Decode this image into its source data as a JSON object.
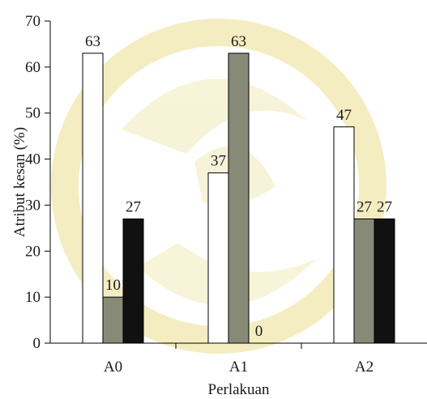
{
  "chart_data": {
    "type": "bar",
    "title": "",
    "xlabel": "Perlakuan",
    "ylabel": "Atribut kesan (%)",
    "categories": [
      "A0",
      "A1",
      "A2"
    ],
    "series": [
      {
        "values": [
          63,
          37,
          47
        ],
        "color": "#ffffff"
      },
      {
        "values": [
          10,
          63,
          27
        ],
        "color": "#888a78"
      },
      {
        "values": [
          27,
          0,
          27
        ],
        "color": "#111111"
      }
    ],
    "data_labels": [
      [
        "63",
        "37",
        "47"
      ],
      [
        "10",
        "63",
        "27"
      ],
      [
        "27",
        "0",
        "27"
      ]
    ],
    "ylim": [
      0,
      70
    ],
    "yticks": [
      0,
      10,
      20,
      30,
      40,
      50,
      60,
      70
    ],
    "grid": false,
    "legend": "none"
  }
}
